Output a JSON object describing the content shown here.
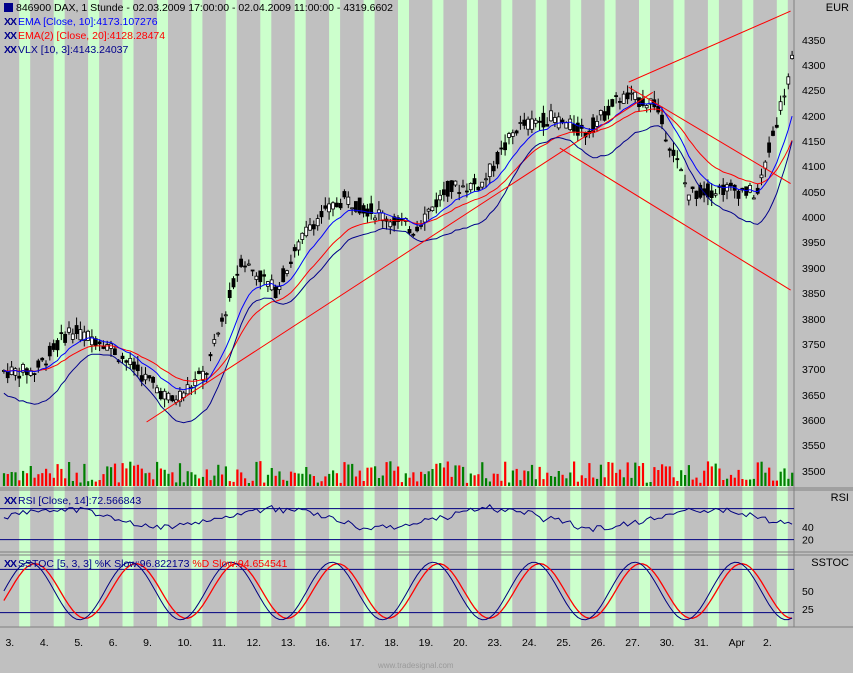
{
  "header": {
    "symbol": "846900",
    "title_rest": "DAX, 1 Stunde - 02.03.2009 17:00:00 - 02.04.2009 11:00:00 - 4319.6602",
    "currency": "EUR"
  },
  "indicators": {
    "ema10": "EMA [Close, 10]:4173.107276",
    "ema20": "EMA(2) [Close, 20]:4128.28474",
    "vlx": "VLX [10, 3]:4143.24037",
    "rsi": "RSI [Close, 14]:72.566843",
    "sstoc_k": "SSTOC [5, 3, 3] %K Slow:96.822173",
    "sstoc_d": "%D Slow:94.654541",
    "xx": "XX"
  },
  "panes": {
    "rsi": "RSI",
    "sstoc": "SSTOC"
  },
  "watermark": "www.tradesignal.com",
  "colors": {
    "background": "#c0c0c0",
    "session_band": "#ccffcc",
    "ema10": "#0000ff",
    "ema20": "#ff0000",
    "vlx": "#00008b",
    "trendline": "#ff0000",
    "volume": "#008000",
    "candle": "#000000"
  },
  "chart_data": {
    "type": "candlestick",
    "instrument": "DAX, 1 Stunde",
    "y_axis": {
      "range": [
        3470,
        4420
      ],
      "ticks": [
        3500,
        3550,
        3600,
        3650,
        3700,
        3750,
        3800,
        3850,
        3900,
        3950,
        4000,
        4050,
        4100,
        4150,
        4200,
        4250,
        4300,
        4350
      ]
    },
    "rsi_axis": {
      "range": [
        0,
        100
      ],
      "ticks": [
        20,
        40
      ],
      "ref_lines": [
        20,
        70
      ]
    },
    "sstoc_axis": {
      "range": [
        0,
        100
      ],
      "ticks": [
        25,
        50
      ],
      "ref_lines": [
        20,
        80
      ]
    },
    "x_ticks": [
      "3.",
      "4.",
      "5.",
      "6.",
      "9.",
      "10.",
      "11.",
      "12.",
      "13.",
      "16.",
      "17.",
      "18.",
      "19.",
      "20.",
      "23.",
      "24.",
      "25.",
      "26.",
      "27.",
      "30.",
      "31.",
      "Apr",
      "2."
    ],
    "daily_closes": [
      3700,
      3780,
      3760,
      3700,
      3640,
      3700,
      3920,
      3860,
      3990,
      4040,
      4010,
      3980,
      4060,
      4070,
      4180,
      4200,
      4170,
      4240,
      4230,
      4050,
      4060,
      4050,
      4310
    ],
    "last_close": 4319.6602,
    "ema10_last": 4173.107276,
    "ema20_last": 4128.28474,
    "vlx_last": 4143.24037,
    "rsi_last": 72.566843,
    "stoch_k_last": 96.822173,
    "stoch_d_last": 94.654541,
    "trendlines": [
      {
        "from": [
          "9.",
          3600
        ],
        "to": [
          "27.",
          4250
        ]
      },
      {
        "from": [
          "27.",
          4270
        ],
        "to": [
          "2.",
          4410
        ]
      },
      {
        "from": [
          "27.",
          4260
        ],
        "to": [
          "2.",
          4070
        ]
      },
      {
        "from": [
          "25.",
          4140
        ],
        "to": [
          "2.",
          3860
        ]
      }
    ]
  }
}
